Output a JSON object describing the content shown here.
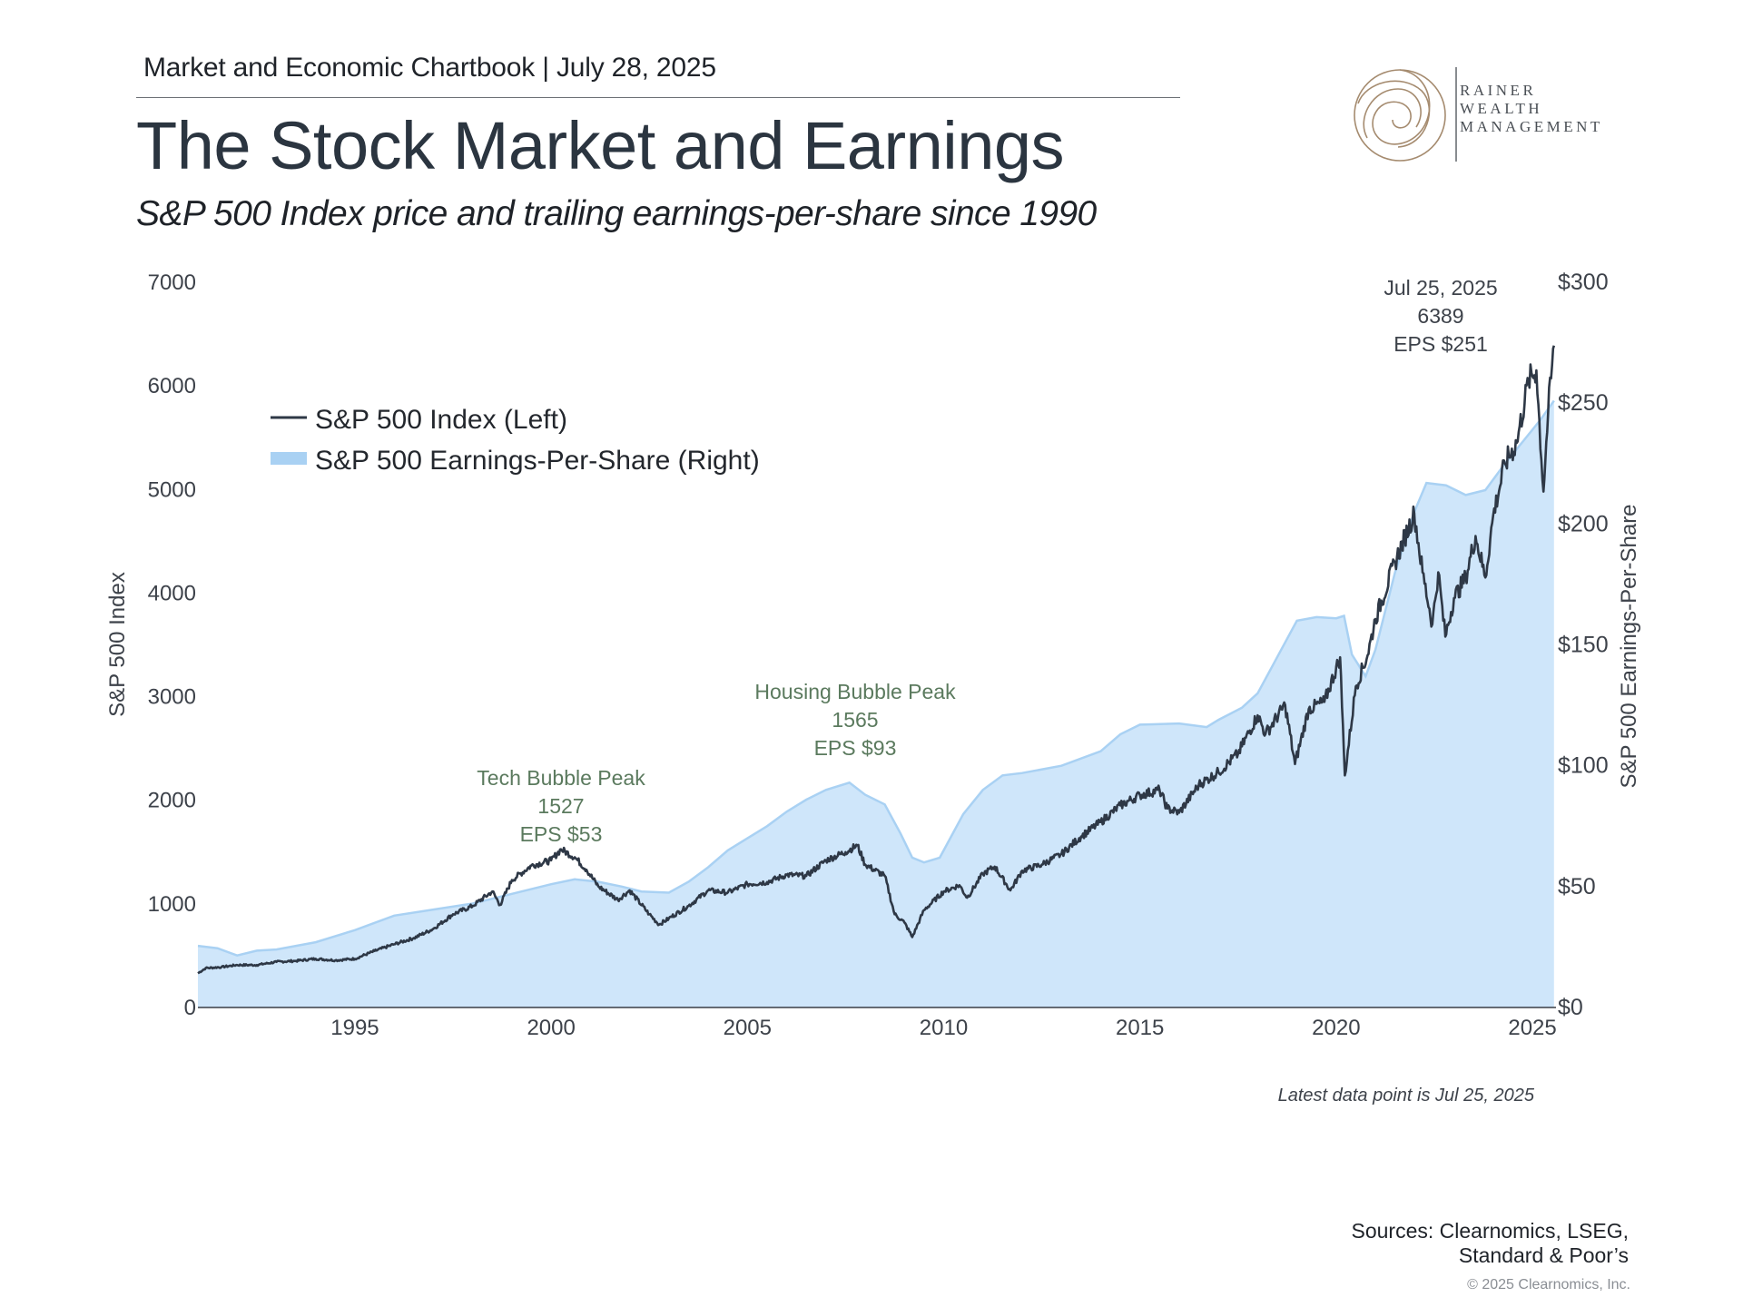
{
  "header": {
    "chartbook_label": "Market and Economic Chartbook | July 28, 2025",
    "title": "The Stock Market and Earnings",
    "subtitle": "S&P 500 Index price and trailing earnings-per-share since 1990"
  },
  "logo": {
    "line1": "RAINER",
    "line2": "WEALTH",
    "line3": "MANAGEMENT",
    "color": "#a58b6f"
  },
  "footer": {
    "latest_note": "Latest data point is Jul 25, 2025",
    "sources_line1": "Sources: Clearnomics, LSEG,",
    "sources_line2": "Standard & Poor’s",
    "copyright": "© 2025 Clearnomics, Inc."
  },
  "colors": {
    "index_line": "#2e3846",
    "eps_fill": "#cfe6fa",
    "eps_edge": "#a9d1f3",
    "annotation_green": "#5b7a5e",
    "annotation_dark": "#3d424a",
    "axis_text": "#3d424a"
  },
  "chart_data": {
    "type": "line",
    "title": "The Stock Market and Earnings",
    "left_axis": {
      "label": "S&P 500 Index",
      "range": [
        0,
        7000
      ],
      "ticks": [
        0,
        1000,
        2000,
        3000,
        4000,
        5000,
        6000,
        7000
      ],
      "tick_labels": [
        "0",
        "1000",
        "2000",
        "3000",
        "4000",
        "5000",
        "6000",
        "7000"
      ]
    },
    "right_axis": {
      "label": "S&P 500 Earnings-Per-Share",
      "range": [
        0,
        300
      ],
      "ticks": [
        0,
        50,
        100,
        150,
        200,
        250,
        300
      ],
      "tick_labels": [
        "$0",
        "$50",
        "$100",
        "$150",
        "$200",
        "$250",
        "$300"
      ]
    },
    "x_axis": {
      "range": [
        1991.0,
        2025.6
      ],
      "ticks": [
        1995,
        2000,
        2005,
        2010,
        2015,
        2020,
        2025
      ],
      "tick_labels": [
        "1995",
        "2000",
        "2005",
        "2010",
        "2015",
        "2020",
        "2025"
      ]
    },
    "legend": {
      "placement": "top-left",
      "entries": [
        {
          "label": "S&P 500 Index (Left)",
          "kind": "line"
        },
        {
          "label": "S&P 500 Earnings-Per-Share (Right)",
          "kind": "area"
        }
      ]
    },
    "series": [
      {
        "name": "S&P 500 Index (Left)",
        "axis": "left",
        "kind": "line",
        "points": [
          [
            1991.0,
            330
          ],
          [
            1991.2,
            380
          ],
          [
            1991.6,
            390
          ],
          [
            1992.0,
            410
          ],
          [
            1992.5,
            410
          ],
          [
            1993.0,
            440
          ],
          [
            1993.5,
            450
          ],
          [
            1994.0,
            470
          ],
          [
            1994.5,
            455
          ],
          [
            1995.0,
            470
          ],
          [
            1995.5,
            545
          ],
          [
            1996.0,
            610
          ],
          [
            1996.5,
            670
          ],
          [
            1997.0,
            760
          ],
          [
            1997.5,
            900
          ],
          [
            1998.0,
            980
          ],
          [
            1998.5,
            1120
          ],
          [
            1998.7,
            990
          ],
          [
            1999.0,
            1230
          ],
          [
            1999.5,
            1370
          ],
          [
            2000.0,
            1420
          ],
          [
            2000.25,
            1527
          ],
          [
            2000.6,
            1450
          ],
          [
            2000.9,
            1330
          ],
          [
            2001.2,
            1170
          ],
          [
            2001.7,
            1040
          ],
          [
            2002.0,
            1130
          ],
          [
            2002.5,
            900
          ],
          [
            2002.75,
            800
          ],
          [
            2003.0,
            860
          ],
          [
            2003.5,
            980
          ],
          [
            2004.0,
            1130
          ],
          [
            2004.5,
            1110
          ],
          [
            2005.0,
            1190
          ],
          [
            2005.5,
            1210
          ],
          [
            2006.0,
            1280
          ],
          [
            2006.5,
            1270
          ],
          [
            2007.0,
            1420
          ],
          [
            2007.5,
            1500
          ],
          [
            2007.8,
            1565
          ],
          [
            2008.0,
            1380
          ],
          [
            2008.5,
            1270
          ],
          [
            2008.75,
            900
          ],
          [
            2009.0,
            820
          ],
          [
            2009.2,
            680
          ],
          [
            2009.5,
            940
          ],
          [
            2010.0,
            1120
          ],
          [
            2010.4,
            1180
          ],
          [
            2010.6,
            1060
          ],
          [
            2011.0,
            1290
          ],
          [
            2011.3,
            1360
          ],
          [
            2011.7,
            1130
          ],
          [
            2012.0,
            1320
          ],
          [
            2012.5,
            1380
          ],
          [
            2013.0,
            1480
          ],
          [
            2013.5,
            1650
          ],
          [
            2014.0,
            1790
          ],
          [
            2014.5,
            1950
          ],
          [
            2015.0,
            2050
          ],
          [
            2015.5,
            2100
          ],
          [
            2015.7,
            1920
          ],
          [
            2016.0,
            1880
          ],
          [
            2016.5,
            2150
          ],
          [
            2017.0,
            2270
          ],
          [
            2017.5,
            2450
          ],
          [
            2018.0,
            2820
          ],
          [
            2018.2,
            2640
          ],
          [
            2018.7,
            2920
          ],
          [
            2018.95,
            2350
          ],
          [
            2019.3,
            2880
          ],
          [
            2019.7,
            2950
          ],
          [
            2020.1,
            3380
          ],
          [
            2020.22,
            2240
          ],
          [
            2020.5,
            3100
          ],
          [
            2020.8,
            3400
          ],
          [
            2021.0,
            3750
          ],
          [
            2021.5,
            4300
          ],
          [
            2021.99,
            4770
          ],
          [
            2022.2,
            4200
          ],
          [
            2022.45,
            3700
          ],
          [
            2022.6,
            4200
          ],
          [
            2022.78,
            3580
          ],
          [
            2023.0,
            3950
          ],
          [
            2023.3,
            4150
          ],
          [
            2023.55,
            4550
          ],
          [
            2023.8,
            4150
          ],
          [
            2024.0,
            4750
          ],
          [
            2024.3,
            5250
          ],
          [
            2024.6,
            5450
          ],
          [
            2024.9,
            6050
          ],
          [
            2025.1,
            6150
          ],
          [
            2025.28,
            4980
          ],
          [
            2025.4,
            5750
          ],
          [
            2025.55,
            6389
          ]
        ]
      },
      {
        "name": "S&P 500 Earnings-Per-Share (Right)",
        "axis": "right",
        "kind": "area",
        "points": [
          [
            1991.0,
            25.5
          ],
          [
            1991.5,
            24.5
          ],
          [
            1992.0,
            21.5
          ],
          [
            1992.5,
            23.5
          ],
          [
            1993.0,
            24
          ],
          [
            1994.0,
            27
          ],
          [
            1995.0,
            32
          ],
          [
            1996.0,
            38
          ],
          [
            1997.0,
            40.5
          ],
          [
            1998.0,
            43
          ],
          [
            1999.0,
            47
          ],
          [
            2000.0,
            51
          ],
          [
            2000.6,
            53
          ],
          [
            2001.2,
            52
          ],
          [
            2001.8,
            50
          ],
          [
            2002.3,
            48
          ],
          [
            2003.0,
            47.5
          ],
          [
            2003.5,
            52
          ],
          [
            2004.0,
            58
          ],
          [
            2004.5,
            65
          ],
          [
            2005.0,
            70
          ],
          [
            2005.5,
            75
          ],
          [
            2006.0,
            81
          ],
          [
            2006.5,
            86
          ],
          [
            2007.0,
            90
          ],
          [
            2007.6,
            93
          ],
          [
            2008.0,
            88
          ],
          [
            2008.5,
            84
          ],
          [
            2008.9,
            72
          ],
          [
            2009.2,
            62
          ],
          [
            2009.5,
            60
          ],
          [
            2009.9,
            62
          ],
          [
            2010.5,
            80
          ],
          [
            2011.0,
            90
          ],
          [
            2011.5,
            96
          ],
          [
            2012.0,
            97
          ],
          [
            2013.0,
            100
          ],
          [
            2014.0,
            106
          ],
          [
            2014.5,
            113
          ],
          [
            2015.0,
            117
          ],
          [
            2016.0,
            117.5
          ],
          [
            2016.7,
            116
          ],
          [
            2017.0,
            119
          ],
          [
            2017.6,
            124
          ],
          [
            2018.0,
            130
          ],
          [
            2018.5,
            145
          ],
          [
            2019.0,
            160
          ],
          [
            2019.5,
            161.5
          ],
          [
            2020.0,
            161
          ],
          [
            2020.2,
            162
          ],
          [
            2020.4,
            146
          ],
          [
            2020.75,
            137
          ],
          [
            2021.0,
            148
          ],
          [
            2021.5,
            180
          ],
          [
            2021.99,
            205
          ],
          [
            2022.3,
            217
          ],
          [
            2022.8,
            216
          ],
          [
            2023.3,
            212
          ],
          [
            2023.8,
            214
          ],
          [
            2024.3,
            225
          ],
          [
            2024.8,
            235
          ],
          [
            2025.2,
            243
          ],
          [
            2025.55,
            251
          ]
        ]
      }
    ],
    "annotations": [
      {
        "lines": [
          "Tech Bubble Peak",
          "1527",
          "EPS $53"
        ],
        "style": "green"
      },
      {
        "lines": [
          "Housing Bubble Peak",
          "1565",
          "EPS $93"
        ],
        "style": "green"
      },
      {
        "lines": [
          "Jul 25, 2025",
          "6389",
          "EPS $251"
        ],
        "style": "dark"
      }
    ]
  }
}
